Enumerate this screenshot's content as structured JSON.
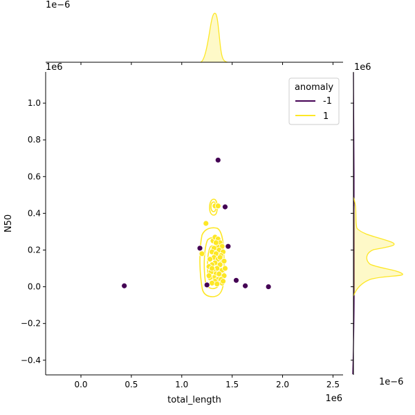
{
  "chart_data": {
    "type": "scatter",
    "xlabel": "total_length",
    "ylabel": "N50",
    "x_offset_label": "1e6",
    "y_offset_label": "1e6",
    "top_marginal_offset_label": "1e−6",
    "right_marginal_offset_label": "1e−6",
    "right_marginal_top_label": "1e6",
    "xlim": [
      -0.35,
      2.6
    ],
    "ylim": [
      -0.48,
      1.17
    ],
    "x_ticks": [
      0.0,
      0.5,
      1.0,
      1.5,
      2.0,
      2.5
    ],
    "x_tick_labels": [
      "0.0",
      "0.5",
      "1.0",
      "1.5",
      "2.0",
      "2.5"
    ],
    "y_ticks": [
      -0.4,
      -0.2,
      0.0,
      0.2,
      0.4,
      0.6,
      0.8,
      1.0
    ],
    "y_tick_labels": [
      "−0.4",
      "−0.2",
      "0.0",
      "0.2",
      "0.4",
      "0.6",
      "0.8",
      "1.0"
    ],
    "legend": {
      "title": "anomaly",
      "placement": "top-right",
      "entries": [
        {
          "label": "-1",
          "color": "#440154"
        },
        {
          "label": "1",
          "color": "#fde725"
        }
      ]
    },
    "series": [
      {
        "name": "-1",
        "color": "#440154",
        "points": [
          [
            1.36,
            0.69
          ],
          [
            1.43,
            0.435
          ],
          [
            1.18,
            0.21
          ],
          [
            1.46,
            0.22
          ],
          [
            0.43,
            0.005
          ],
          [
            1.25,
            0.01
          ],
          [
            1.54,
            0.035
          ],
          [
            1.63,
            0.005
          ],
          [
            1.86,
            0.0
          ]
        ]
      },
      {
        "name": "1",
        "color": "#fde725",
        "points": [
          [
            1.24,
            0.345
          ],
          [
            1.2,
            0.18
          ],
          [
            1.33,
            0.44
          ],
          [
            1.36,
            0.44
          ],
          [
            1.31,
            0.25
          ],
          [
            1.33,
            0.27
          ],
          [
            1.36,
            0.26
          ],
          [
            1.38,
            0.24
          ],
          [
            1.4,
            0.22
          ],
          [
            1.35,
            0.22
          ],
          [
            1.32,
            0.21
          ],
          [
            1.3,
            0.19
          ],
          [
            1.37,
            0.2
          ],
          [
            1.41,
            0.19
          ],
          [
            1.34,
            0.18
          ],
          [
            1.39,
            0.17
          ],
          [
            1.32,
            0.16
          ],
          [
            1.28,
            0.15
          ],
          [
            1.36,
            0.15
          ],
          [
            1.42,
            0.14
          ],
          [
            1.33,
            0.13
          ],
          [
            1.3,
            0.12
          ],
          [
            1.27,
            0.11
          ],
          [
            1.38,
            0.12
          ],
          [
            1.35,
            0.1
          ],
          [
            1.31,
            0.09
          ],
          [
            1.4,
            0.09
          ],
          [
            1.29,
            0.08
          ],
          [
            1.34,
            0.07
          ],
          [
            1.37,
            0.07
          ],
          [
            1.42,
            0.06
          ],
          [
            1.32,
            0.05
          ],
          [
            1.28,
            0.05
          ],
          [
            1.36,
            0.04
          ],
          [
            1.39,
            0.04
          ],
          [
            1.33,
            0.03
          ],
          [
            1.3,
            0.02
          ],
          [
            1.4,
            0.02
          ],
          [
            1.35,
            0.015
          ],
          [
            1.27,
            0.06
          ],
          [
            1.43,
            0.1
          ],
          [
            1.38,
            0.16
          ],
          [
            1.34,
            0.24
          ],
          [
            1.3,
            0.1
          ],
          [
            1.41,
            0.03
          ]
        ]
      }
    ]
  }
}
